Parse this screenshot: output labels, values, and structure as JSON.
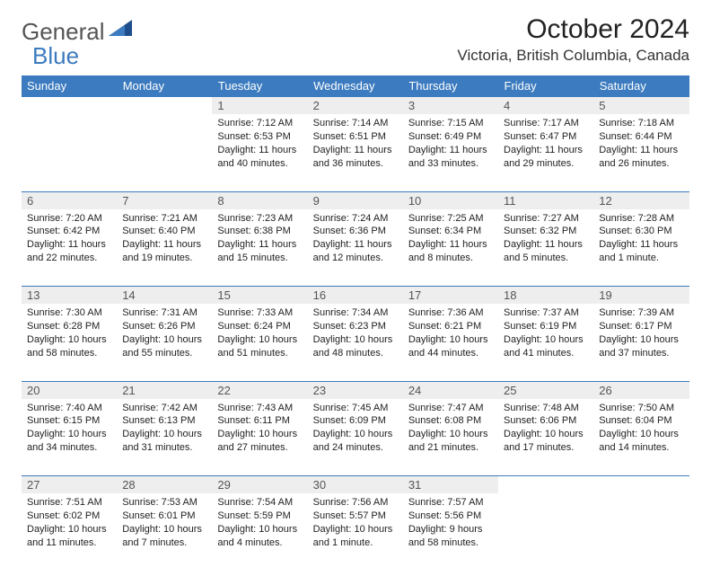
{
  "brand": {
    "text1": "General",
    "text2": "Blue"
  },
  "title": "October 2024",
  "location": "Victoria, British Columbia, Canada",
  "colors": {
    "header_bg": "#3c7bbf",
    "daynum_bg": "#eeeeee",
    "text": "#222222",
    "muted": "#555555",
    "brand_blue": "#3c7bbf",
    "brand_gray": "#555555"
  },
  "dayNames": [
    "Sunday",
    "Monday",
    "Tuesday",
    "Wednesday",
    "Thursday",
    "Friday",
    "Saturday"
  ],
  "weeks": [
    [
      {
        "day": "",
        "sunrise": "",
        "sunset": "",
        "daylight": "",
        "empty": true
      },
      {
        "day": "",
        "sunrise": "",
        "sunset": "",
        "daylight": "",
        "empty": true
      },
      {
        "day": "1",
        "sunrise": "Sunrise: 7:12 AM",
        "sunset": "Sunset: 6:53 PM",
        "daylight": "Daylight: 11 hours and 40 minutes."
      },
      {
        "day": "2",
        "sunrise": "Sunrise: 7:14 AM",
        "sunset": "Sunset: 6:51 PM",
        "daylight": "Daylight: 11 hours and 36 minutes."
      },
      {
        "day": "3",
        "sunrise": "Sunrise: 7:15 AM",
        "sunset": "Sunset: 6:49 PM",
        "daylight": "Daylight: 11 hours and 33 minutes."
      },
      {
        "day": "4",
        "sunrise": "Sunrise: 7:17 AM",
        "sunset": "Sunset: 6:47 PM",
        "daylight": "Daylight: 11 hours and 29 minutes."
      },
      {
        "day": "5",
        "sunrise": "Sunrise: 7:18 AM",
        "sunset": "Sunset: 6:44 PM",
        "daylight": "Daylight: 11 hours and 26 minutes."
      }
    ],
    [
      {
        "day": "6",
        "sunrise": "Sunrise: 7:20 AM",
        "sunset": "Sunset: 6:42 PM",
        "daylight": "Daylight: 11 hours and 22 minutes."
      },
      {
        "day": "7",
        "sunrise": "Sunrise: 7:21 AM",
        "sunset": "Sunset: 6:40 PM",
        "daylight": "Daylight: 11 hours and 19 minutes."
      },
      {
        "day": "8",
        "sunrise": "Sunrise: 7:23 AM",
        "sunset": "Sunset: 6:38 PM",
        "daylight": "Daylight: 11 hours and 15 minutes."
      },
      {
        "day": "9",
        "sunrise": "Sunrise: 7:24 AM",
        "sunset": "Sunset: 6:36 PM",
        "daylight": "Daylight: 11 hours and 12 minutes."
      },
      {
        "day": "10",
        "sunrise": "Sunrise: 7:25 AM",
        "sunset": "Sunset: 6:34 PM",
        "daylight": "Daylight: 11 hours and 8 minutes."
      },
      {
        "day": "11",
        "sunrise": "Sunrise: 7:27 AM",
        "sunset": "Sunset: 6:32 PM",
        "daylight": "Daylight: 11 hours and 5 minutes."
      },
      {
        "day": "12",
        "sunrise": "Sunrise: 7:28 AM",
        "sunset": "Sunset: 6:30 PM",
        "daylight": "Daylight: 11 hours and 1 minute."
      }
    ],
    [
      {
        "day": "13",
        "sunrise": "Sunrise: 7:30 AM",
        "sunset": "Sunset: 6:28 PM",
        "daylight": "Daylight: 10 hours and 58 minutes."
      },
      {
        "day": "14",
        "sunrise": "Sunrise: 7:31 AM",
        "sunset": "Sunset: 6:26 PM",
        "daylight": "Daylight: 10 hours and 55 minutes."
      },
      {
        "day": "15",
        "sunrise": "Sunrise: 7:33 AM",
        "sunset": "Sunset: 6:24 PM",
        "daylight": "Daylight: 10 hours and 51 minutes."
      },
      {
        "day": "16",
        "sunrise": "Sunrise: 7:34 AM",
        "sunset": "Sunset: 6:23 PM",
        "daylight": "Daylight: 10 hours and 48 minutes."
      },
      {
        "day": "17",
        "sunrise": "Sunrise: 7:36 AM",
        "sunset": "Sunset: 6:21 PM",
        "daylight": "Daylight: 10 hours and 44 minutes."
      },
      {
        "day": "18",
        "sunrise": "Sunrise: 7:37 AM",
        "sunset": "Sunset: 6:19 PM",
        "daylight": "Daylight: 10 hours and 41 minutes."
      },
      {
        "day": "19",
        "sunrise": "Sunrise: 7:39 AM",
        "sunset": "Sunset: 6:17 PM",
        "daylight": "Daylight: 10 hours and 37 minutes."
      }
    ],
    [
      {
        "day": "20",
        "sunrise": "Sunrise: 7:40 AM",
        "sunset": "Sunset: 6:15 PM",
        "daylight": "Daylight: 10 hours and 34 minutes."
      },
      {
        "day": "21",
        "sunrise": "Sunrise: 7:42 AM",
        "sunset": "Sunset: 6:13 PM",
        "daylight": "Daylight: 10 hours and 31 minutes."
      },
      {
        "day": "22",
        "sunrise": "Sunrise: 7:43 AM",
        "sunset": "Sunset: 6:11 PM",
        "daylight": "Daylight: 10 hours and 27 minutes."
      },
      {
        "day": "23",
        "sunrise": "Sunrise: 7:45 AM",
        "sunset": "Sunset: 6:09 PM",
        "daylight": "Daylight: 10 hours and 24 minutes."
      },
      {
        "day": "24",
        "sunrise": "Sunrise: 7:47 AM",
        "sunset": "Sunset: 6:08 PM",
        "daylight": "Daylight: 10 hours and 21 minutes."
      },
      {
        "day": "25",
        "sunrise": "Sunrise: 7:48 AM",
        "sunset": "Sunset: 6:06 PM",
        "daylight": "Daylight: 10 hours and 17 minutes."
      },
      {
        "day": "26",
        "sunrise": "Sunrise: 7:50 AM",
        "sunset": "Sunset: 6:04 PM",
        "daylight": "Daylight: 10 hours and 14 minutes."
      }
    ],
    [
      {
        "day": "27",
        "sunrise": "Sunrise: 7:51 AM",
        "sunset": "Sunset: 6:02 PM",
        "daylight": "Daylight: 10 hours and 11 minutes."
      },
      {
        "day": "28",
        "sunrise": "Sunrise: 7:53 AM",
        "sunset": "Sunset: 6:01 PM",
        "daylight": "Daylight: 10 hours and 7 minutes."
      },
      {
        "day": "29",
        "sunrise": "Sunrise: 7:54 AM",
        "sunset": "Sunset: 5:59 PM",
        "daylight": "Daylight: 10 hours and 4 minutes."
      },
      {
        "day": "30",
        "sunrise": "Sunrise: 7:56 AM",
        "sunset": "Sunset: 5:57 PM",
        "daylight": "Daylight: 10 hours and 1 minute."
      },
      {
        "day": "31",
        "sunrise": "Sunrise: 7:57 AM",
        "sunset": "Sunset: 5:56 PM",
        "daylight": "Daylight: 9 hours and 58 minutes."
      },
      {
        "day": "",
        "sunrise": "",
        "sunset": "",
        "daylight": "",
        "empty": true
      },
      {
        "day": "",
        "sunrise": "",
        "sunset": "",
        "daylight": "",
        "empty": true
      }
    ]
  ]
}
